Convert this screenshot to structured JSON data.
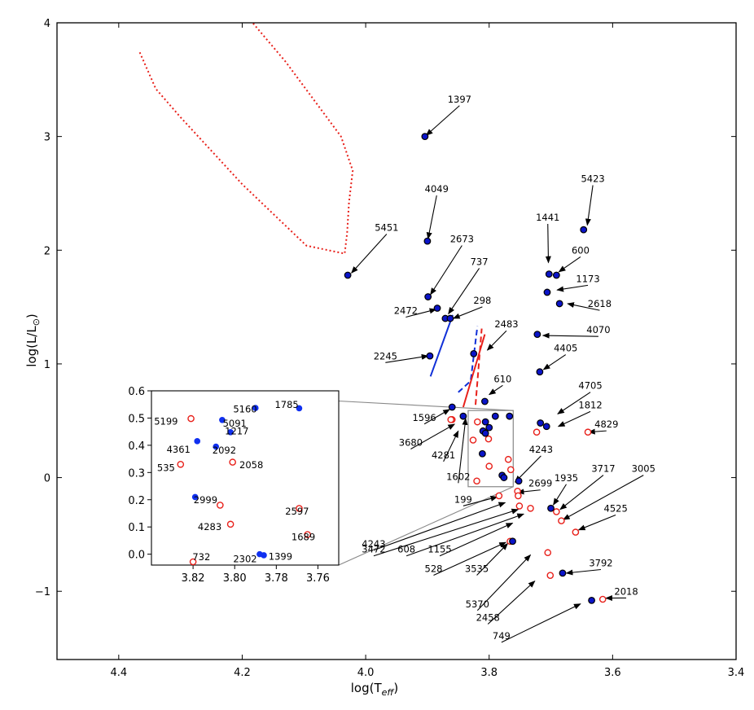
{
  "chart_data": {
    "type": "scatter",
    "xlabel_main": "log(T",
    "xlabel_sub": "eff",
    "xlabel_close": ")",
    "ylabel_main": "log(L/L",
    "ylabel_sun": "⊙",
    "ylabel_close": ")",
    "xlim": [
      4.5,
      3.4
    ],
    "ylim": [
      -1.6,
      4.0
    ],
    "x_ticks": [
      {
        "v": 4.4,
        "label": "4.4"
      },
      {
        "v": 4.2,
        "label": "4.2"
      },
      {
        "v": 4.0,
        "label": "4.0"
      },
      {
        "v": 3.8,
        "label": "3.8"
      },
      {
        "v": 3.6,
        "label": "3.6"
      },
      {
        "v": 3.4,
        "label": "3.4"
      }
    ],
    "y_ticks": [
      {
        "v": 4,
        "label": "4"
      },
      {
        "v": 3,
        "label": "3"
      },
      {
        "v": 2,
        "label": "2"
      },
      {
        "v": 1,
        "label": "1"
      },
      {
        "v": 0,
        "label": "0"
      },
      {
        "v": -1,
        "label": "−1"
      }
    ],
    "colors": {
      "filled_fill": "#0a14c8",
      "filled_edge": "#000000",
      "open_edge": "#e8201a",
      "blue_line": "#1030d8",
      "red_line": "#e8201a",
      "box": "#888888"
    },
    "filled_points": [
      {
        "x": 3.904,
        "y": 3.0
      },
      {
        "x": 3.9,
        "y": 2.08
      },
      {
        "x": 4.029,
        "y": 1.78
      },
      {
        "x": 3.899,
        "y": 1.59
      },
      {
        "x": 3.884,
        "y": 1.49
      },
      {
        "x": 3.871,
        "y": 1.4
      },
      {
        "x": 3.863,
        "y": 1.4
      },
      {
        "x": 3.896,
        "y": 1.07
      },
      {
        "x": 3.825,
        "y": 1.09
      },
      {
        "x": 3.703,
        "y": 1.79
      },
      {
        "x": 3.691,
        "y": 1.78
      },
      {
        "x": 3.706,
        "y": 1.63
      },
      {
        "x": 3.686,
        "y": 1.53
      },
      {
        "x": 3.722,
        "y": 1.26
      },
      {
        "x": 3.718,
        "y": 0.93
      },
      {
        "x": 3.647,
        "y": 2.18
      },
      {
        "x": 3.807,
        "y": 0.67
      },
      {
        "x": 3.86,
        "y": 0.62
      },
      {
        "x": 3.842,
        "y": 0.54
      },
      {
        "x": 3.79,
        "y": 0.54
      },
      {
        "x": 3.767,
        "y": 0.54
      },
      {
        "x": 3.806,
        "y": 0.49
      },
      {
        "x": 3.8,
        "y": 0.44
      },
      {
        "x": 3.81,
        "y": 0.41
      },
      {
        "x": 3.806,
        "y": 0.39
      },
      {
        "x": 3.811,
        "y": 0.21
      },
      {
        "x": 3.779,
        "y": 0.02
      },
      {
        "x": 3.776,
        "y": 0.0
      },
      {
        "x": 3.752,
        "y": -0.03
      },
      {
        "x": 3.717,
        "y": 0.48
      },
      {
        "x": 3.707,
        "y": 0.45
      },
      {
        "x": 3.7,
        "y": -0.27
      },
      {
        "x": 3.762,
        "y": -0.56
      },
      {
        "x": 3.681,
        "y": -0.84
      },
      {
        "x": 3.634,
        "y": -1.08
      }
    ],
    "open_points": [
      {
        "x": 3.86,
        "y": 0.51
      },
      {
        "x": 3.862,
        "y": 0.51
      },
      {
        "x": 3.819,
        "y": 0.49
      },
      {
        "x": 3.801,
        "y": 0.34
      },
      {
        "x": 3.826,
        "y": 0.33
      },
      {
        "x": 3.769,
        "y": 0.16
      },
      {
        "x": 3.8,
        "y": 0.1
      },
      {
        "x": 3.765,
        "y": 0.07
      },
      {
        "x": 3.82,
        "y": -0.03
      },
      {
        "x": 3.723,
        "y": 0.4
      },
      {
        "x": 3.64,
        "y": 0.4
      },
      {
        "x": 3.784,
        "y": -0.16
      },
      {
        "x": 3.754,
        "y": -0.12
      },
      {
        "x": 3.753,
        "y": -0.16
      },
      {
        "x": 3.751,
        "y": -0.25
      },
      {
        "x": 3.733,
        "y": -0.27
      },
      {
        "x": 3.691,
        "y": -0.3
      },
      {
        "x": 3.683,
        "y": -0.38
      },
      {
        "x": 3.66,
        "y": -0.48
      },
      {
        "x": 3.766,
        "y": -0.56
      },
      {
        "x": 3.705,
        "y": -0.66
      },
      {
        "x": 3.701,
        "y": -0.86
      },
      {
        "x": 3.616,
        "y": -1.07
      }
    ],
    "labels": [
      {
        "t": "1397",
        "lx": 3.848,
        "ly": 3.3,
        "px": 3.902,
        "py": 3.01
      },
      {
        "t": "4049",
        "lx": 3.885,
        "ly": 2.51,
        "px": 3.899,
        "py": 2.1
      },
      {
        "t": "5451",
        "lx": 3.966,
        "ly": 2.17,
        "px": 4.023,
        "py": 1.8
      },
      {
        "t": "2673",
        "lx": 3.844,
        "ly": 2.07,
        "px": 3.895,
        "py": 1.61
      },
      {
        "t": "737",
        "lx": 3.816,
        "ly": 1.87,
        "px": 3.866,
        "py": 1.44
      },
      {
        "t": "2472",
        "lx": 3.935,
        "ly": 1.44,
        "px": 3.886,
        "py": 1.48
      },
      {
        "t": "298",
        "lx": 3.811,
        "ly": 1.53,
        "px": 3.858,
        "py": 1.4
      },
      {
        "t": "2245",
        "lx": 3.968,
        "ly": 1.04,
        "px": 3.899,
        "py": 1.07
      },
      {
        "t": "2483",
        "lx": 3.772,
        "ly": 1.32,
        "px": 3.803,
        "py": 1.12
      },
      {
        "t": "610",
        "lx": 3.778,
        "ly": 0.84,
        "px": 3.8,
        "py": 0.73
      },
      {
        "t": "5423",
        "lx": 3.632,
        "ly": 2.6,
        "px": 3.641,
        "py": 2.22
      },
      {
        "t": "1441",
        "lx": 3.705,
        "ly": 2.26,
        "px": 3.704,
        "py": 1.89
      },
      {
        "t": "600",
        "lx": 3.652,
        "ly": 1.97,
        "px": 3.687,
        "py": 1.81
      },
      {
        "t": "1173",
        "lx": 3.64,
        "ly": 1.72,
        "px": 3.69,
        "py": 1.65
      },
      {
        "t": "2618",
        "lx": 3.621,
        "ly": 1.5,
        "px": 3.673,
        "py": 1.53
      },
      {
        "t": "4070",
        "lx": 3.623,
        "ly": 1.27,
        "px": 3.713,
        "py": 1.25
      },
      {
        "t": "4405",
        "lx": 3.676,
        "ly": 1.11,
        "px": 3.712,
        "py": 0.95
      },
      {
        "t": "4705",
        "lx": 3.636,
        "ly": 0.78,
        "px": 3.689,
        "py": 0.56
      },
      {
        "t": "1812",
        "lx": 3.636,
        "ly": 0.61,
        "px": 3.688,
        "py": 0.45
      },
      {
        "t": "4829",
        "lx": 3.61,
        "ly": 0.44,
        "px": 3.639,
        "py": 0.4
      },
      {
        "t": "1596",
        "lx": 3.905,
        "ly": 0.5,
        "px": 3.864,
        "py": 0.6
      },
      {
        "t": "3680",
        "lx": 3.927,
        "ly": 0.28,
        "px": 3.856,
        "py": 0.47
      },
      {
        "t": "4281",
        "lx": 3.874,
        "ly": 0.17,
        "px": 3.85,
        "py": 0.41
      },
      {
        "t": "1602",
        "lx": 3.85,
        "ly": -0.02,
        "px": 3.838,
        "py": 0.52
      },
      {
        "t": "4243",
        "lx": 3.716,
        "ly": 0.22,
        "px": 3.758,
        "py": -0.04
      },
      {
        "t": "199",
        "lx": 3.842,
        "ly": -0.22,
        "px": 3.787,
        "py": -0.17
      },
      {
        "t": "2699",
        "lx": 3.717,
        "ly": -0.08,
        "px": 3.754,
        "py": -0.13
      },
      {
        "t": "1935",
        "lx": 3.675,
        "ly": -0.03,
        "px": 3.696,
        "py": -0.24
      },
      {
        "t": "3717",
        "lx": 3.615,
        "ly": 0.05,
        "px": 3.685,
        "py": -0.28
      },
      {
        "t": "3005",
        "lx": 3.55,
        "ly": 0.05,
        "px": 3.68,
        "py": -0.37
      },
      {
        "t": "4525",
        "lx": 3.595,
        "ly": -0.3,
        "px": 3.655,
        "py": -0.46
      },
      {
        "t": "4243",
        "lx": 3.987,
        "ly": -0.61,
        "px": 3.774,
        "py": -0.22
      },
      {
        "t": "3472",
        "lx": 3.987,
        "ly": -0.66,
        "px": 3.753,
        "py": -0.28
      },
      {
        "t": "608",
        "lx": 3.934,
        "ly": -0.66,
        "px": 3.744,
        "py": -0.32
      },
      {
        "t": "1155",
        "lx": 3.88,
        "ly": -0.66,
        "px": 3.762,
        "py": -0.4
      },
      {
        "t": "528",
        "lx": 3.89,
        "ly": -0.83,
        "px": 3.773,
        "py": -0.57
      },
      {
        "t": "3535",
        "lx": 3.82,
        "ly": -0.83,
        "px": 3.77,
        "py": -0.58
      },
      {
        "t": "5370",
        "lx": 3.819,
        "ly": -1.14,
        "px": 3.733,
        "py": -0.68
      },
      {
        "t": "2458",
        "lx": 3.802,
        "ly": -1.26,
        "px": 3.726,
        "py": -0.91
      },
      {
        "t": "3792",
        "lx": 3.619,
        "ly": -0.78,
        "px": 3.675,
        "py": -0.84
      },
      {
        "t": "749",
        "lx": 3.78,
        "ly": -1.42,
        "px": 3.652,
        "py": -1.11
      },
      {
        "t": "2018",
        "lx": 3.578,
        "ly": -1.03,
        "px": 3.611,
        "py": -1.06
      }
    ],
    "lines": [
      {
        "style": "dotted",
        "color": "#e8201a",
        "pts": [
          [
            4.366,
            3.74
          ],
          [
            4.34,
            3.42
          ],
          [
            4.3,
            3.17
          ],
          [
            4.2,
            2.58
          ],
          [
            4.096,
            2.04
          ],
          [
            4.034,
            1.97
          ],
          [
            4.03,
            2.15
          ],
          [
            4.027,
            2.42
          ],
          [
            4.021,
            2.7
          ],
          [
            4.04,
            3.0
          ],
          [
            4.13,
            3.66
          ],
          [
            4.183,
            4.0
          ]
        ]
      },
      {
        "style": "solid",
        "color": "#1030d8",
        "pts": [
          [
            3.895,
            0.89
          ],
          [
            3.859,
            1.43
          ]
        ]
      },
      {
        "style": "dashed",
        "color": "#1030d8",
        "pts": [
          [
            3.85,
            0.75
          ],
          [
            3.83,
            0.85
          ],
          [
            3.819,
            1.33
          ]
        ]
      },
      {
        "style": "solid",
        "color": "#e8201a",
        "pts": [
          [
            3.842,
            0.62
          ],
          [
            3.807,
            1.26
          ]
        ]
      },
      {
        "style": "dashed",
        "color": "#e8201a",
        "pts": [
          [
            3.822,
            0.64
          ],
          [
            3.812,
            1.31
          ]
        ]
      }
    ],
    "box": {
      "x0": 3.834,
      "x1": 3.761,
      "y0": -0.08,
      "y1": 0.59
    },
    "inset": {
      "xlim": [
        3.84,
        3.75
      ],
      "ylim": [
        -0.04,
        0.6
      ],
      "x_ticks": [
        {
          "v": 3.82,
          "label": "3.82"
        },
        {
          "v": 3.8,
          "label": "3.80"
        },
        {
          "v": 3.78,
          "label": "3.78"
        },
        {
          "v": 3.76,
          "label": "3.76"
        }
      ],
      "y_ticks": [
        {
          "v": 0.0,
          "label": "0.0"
        },
        {
          "v": 0.1,
          "label": "0.1"
        },
        {
          "v": 0.2,
          "label": "0.2"
        },
        {
          "v": 0.3,
          "label": "0.3"
        },
        {
          "v": 0.4,
          "label": "0.4"
        },
        {
          "v": 0.5,
          "label": "0.5"
        },
        {
          "v": 0.6,
          "label": "0.6"
        }
      ],
      "filled": [
        {
          "x": 3.818,
          "y": 0.415
        },
        {
          "x": 3.809,
          "y": 0.395
        },
        {
          "x": 3.806,
          "y": 0.493
        },
        {
          "x": 3.802,
          "y": 0.448
        },
        {
          "x": 3.79,
          "y": 0.537
        },
        {
          "x": 3.769,
          "y": 0.536
        },
        {
          "x": 3.788,
          "y": 0.0
        },
        {
          "x": 3.786,
          "y": -0.004
        },
        {
          "x": 3.819,
          "y": 0.21
        }
      ],
      "open": [
        {
          "x": 3.821,
          "y": 0.498
        },
        {
          "x": 3.826,
          "y": 0.33
        },
        {
          "x": 3.801,
          "y": 0.338
        },
        {
          "x": 3.807,
          "y": 0.18
        },
        {
          "x": 3.802,
          "y": 0.11
        },
        {
          "x": 3.769,
          "y": 0.168
        },
        {
          "x": 3.765,
          "y": 0.072
        },
        {
          "x": 3.82,
          "y": -0.028
        }
      ],
      "labels": [
        {
          "t": "5199",
          "x": 3.833,
          "y": 0.488
        },
        {
          "t": "5160",
          "x": 3.795,
          "y": 0.532
        },
        {
          "t": "1785",
          "x": 3.775,
          "y": 0.549
        },
        {
          "t": "5091",
          "x": 3.8,
          "y": 0.481
        },
        {
          "t": "1217",
          "x": 3.799,
          "y": 0.452
        },
        {
          "t": "4361",
          "x": 3.827,
          "y": 0.385
        },
        {
          "t": "2092",
          "x": 3.805,
          "y": 0.382
        },
        {
          "t": "535",
          "x": 3.833,
          "y": 0.318
        },
        {
          "t": "2058",
          "x": 3.792,
          "y": 0.328
        },
        {
          "t": "2999",
          "x": 3.814,
          "y": 0.2
        },
        {
          "t": "2597",
          "x": 3.77,
          "y": 0.158
        },
        {
          "t": "4283",
          "x": 3.812,
          "y": 0.1
        },
        {
          "t": "1689",
          "x": 3.767,
          "y": 0.063
        },
        {
          "t": "732",
          "x": 3.816,
          "y": -0.01
        },
        {
          "t": "2302",
          "x": 3.795,
          "y": -0.018
        },
        {
          "t": "1399",
          "x": 3.778,
          "y": -0.008
        }
      ]
    }
  }
}
